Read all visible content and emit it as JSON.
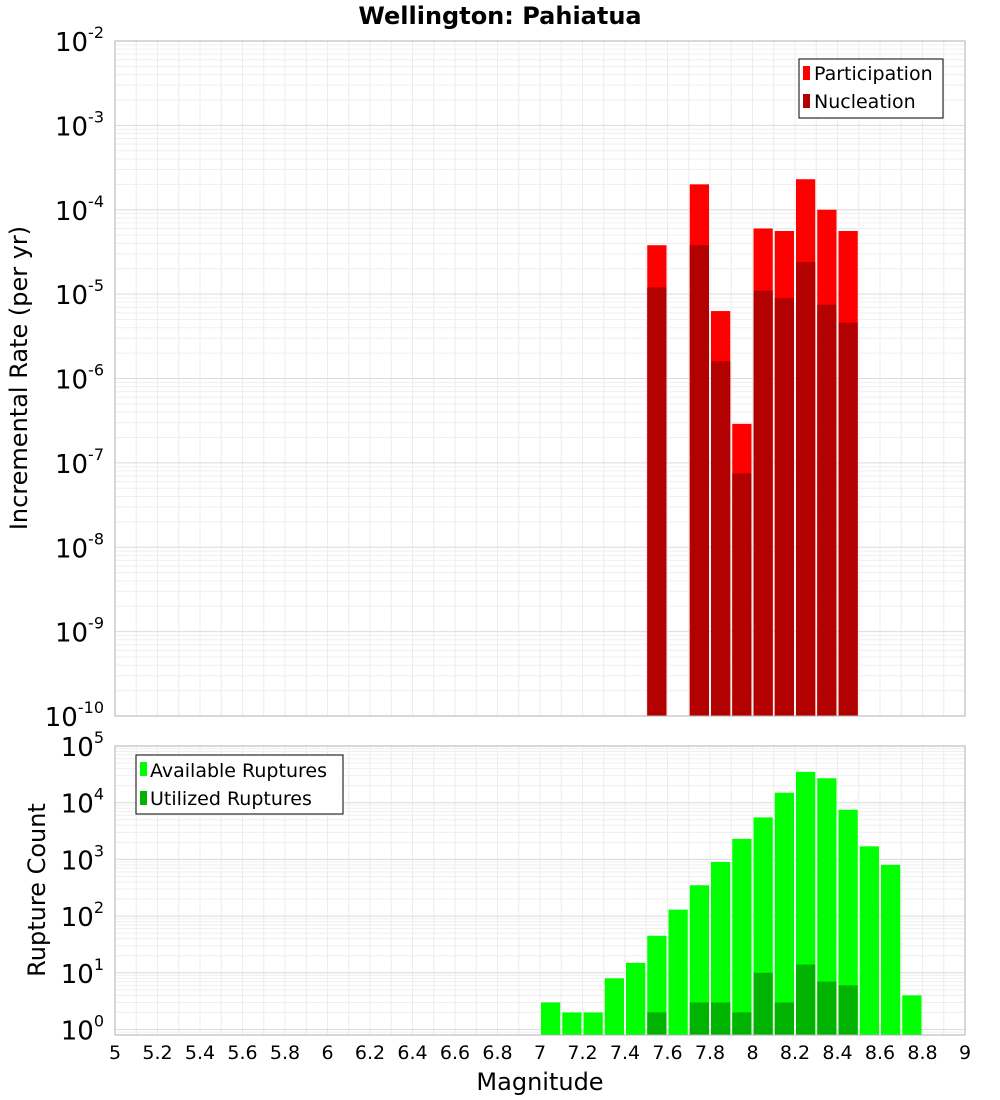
{
  "chart_data": [
    {
      "type": "bar",
      "title": "Wellington: Pahiatua",
      "xlabel": "Magnitude",
      "ylabel": "Incremental Rate (per yr)",
      "yscale": "log",
      "xlim": [
        5,
        9
      ],
      "ylim": [
        1e-10,
        0.01
      ],
      "legend_position": "top-right",
      "colors": {
        "Participation": "#ff0000",
        "Nucleation": "#b30000"
      },
      "bin_width": 0.1,
      "x": [
        7.55,
        7.75,
        7.85,
        7.95,
        8.05,
        8.15,
        8.25,
        8.35,
        8.45
      ],
      "series": [
        {
          "name": "Participation",
          "values": [
            3.8e-05,
            0.0002,
            6.3e-06,
            2.9e-07,
            6e-05,
            5.6e-05,
            0.00023,
            0.0001,
            5.6e-05
          ]
        },
        {
          "name": "Nucleation",
          "values": [
            1.2e-05,
            3.8e-05,
            1.6e-06,
            7.5e-08,
            1.1e-05,
            9e-06,
            2.4e-05,
            7.5e-06,
            4.6e-06
          ]
        }
      ],
      "y_ticks": [
        {
          "base": "10",
          "exp": "-2"
        },
        {
          "base": "10",
          "exp": "-3"
        },
        {
          "base": "10",
          "exp": "-4"
        },
        {
          "base": "10",
          "exp": "-5"
        },
        {
          "base": "10",
          "exp": "-6"
        },
        {
          "base": "10",
          "exp": "-7"
        },
        {
          "base": "10",
          "exp": "-8"
        },
        {
          "base": "10",
          "exp": "-9"
        },
        {
          "base": "10",
          "exp": "-10"
        }
      ]
    },
    {
      "type": "bar",
      "title": "",
      "xlabel": "Magnitude",
      "ylabel": "Rupture Count",
      "yscale": "log",
      "xlim": [
        5,
        9
      ],
      "ylim": [
        0.8,
        100000
      ],
      "legend_position": "top-left",
      "colors": {
        "Available Ruptures": "#00ff00",
        "Utilized Ruptures": "#00b300"
      },
      "bin_width": 0.1,
      "x": [
        7.05,
        7.15,
        7.25,
        7.35,
        7.45,
        7.55,
        7.65,
        7.75,
        7.85,
        7.95,
        8.05,
        8.15,
        8.25,
        8.35,
        8.45,
        8.55,
        8.65,
        8.75
      ],
      "series": [
        {
          "name": "Available Ruptures",
          "values": [
            3,
            2,
            2,
            8,
            15,
            45,
            130,
            350,
            900,
            2300,
            5500,
            15000,
            35000,
            27000,
            7500,
            1700,
            800,
            4
          ]
        },
        {
          "name": "Utilized Ruptures",
          "values": [
            0,
            0,
            0,
            0,
            0,
            2,
            0,
            3,
            3,
            2,
            10,
            3,
            14,
            7,
            6,
            0,
            0,
            0
          ]
        }
      ],
      "y_ticks": [
        {
          "base": "10",
          "exp": "5"
        },
        {
          "base": "10",
          "exp": "4"
        },
        {
          "base": "10",
          "exp": "3"
        },
        {
          "base": "10",
          "exp": "2"
        },
        {
          "base": "10",
          "exp": "1"
        },
        {
          "base": "10",
          "exp": "0"
        }
      ]
    }
  ],
  "x_tick_labels": [
    "5",
    "5.2",
    "5.4",
    "5.6",
    "5.8",
    "6",
    "6.2",
    "6.4",
    "6.6",
    "6.8",
    "7",
    "7.2",
    "7.4",
    "7.6",
    "7.8",
    "8",
    "8.2",
    "8.4",
    "8.6",
    "8.8",
    "9"
  ]
}
